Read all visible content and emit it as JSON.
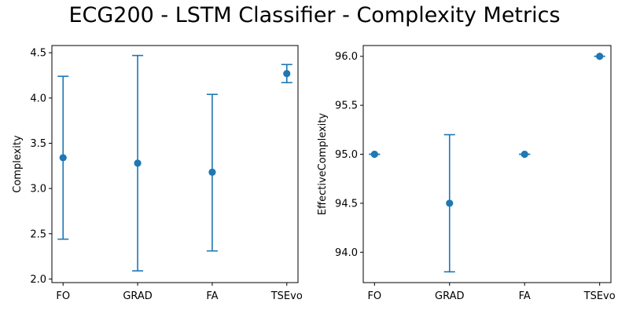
{
  "figure": {
    "title": "ECG200 - LSTM Classifier - Complexity Metrics"
  },
  "chart_data": [
    {
      "type": "errorbar",
      "categories": [
        "FO",
        "GRAD",
        "FA",
        "TSEvo"
      ],
      "ylabel": "Complexity",
      "xlabel": "",
      "ylim": [
        1.96,
        4.58
      ],
      "yticks": [
        "2.0",
        "2.5",
        "3.0",
        "3.5",
        "4.0",
        "4.5"
      ],
      "series": [
        {
          "means": [
            3.34,
            3.28,
            3.18,
            4.27
          ],
          "lower": [
            2.44,
            2.09,
            2.31,
            4.17
          ],
          "upper": [
            4.24,
            4.47,
            4.04,
            4.37
          ]
        }
      ],
      "color": "#1f77b4",
      "grid": false
    },
    {
      "type": "errorbar",
      "categories": [
        "FO",
        "GRAD",
        "FA",
        "TSEvo"
      ],
      "ylabel": "EffectiveComplexity",
      "xlabel": "",
      "ylim": [
        93.69,
        96.11
      ],
      "yticks": [
        "94.0",
        "94.5",
        "95.0",
        "95.5",
        "96.0"
      ],
      "series": [
        {
          "means": [
            95.0,
            94.5,
            95.0,
            96.0
          ],
          "lower": [
            95.0,
            93.8,
            95.0,
            96.0
          ],
          "upper": [
            95.0,
            95.2,
            95.0,
            96.0
          ]
        }
      ],
      "color": "#1f77b4",
      "grid": false
    }
  ]
}
